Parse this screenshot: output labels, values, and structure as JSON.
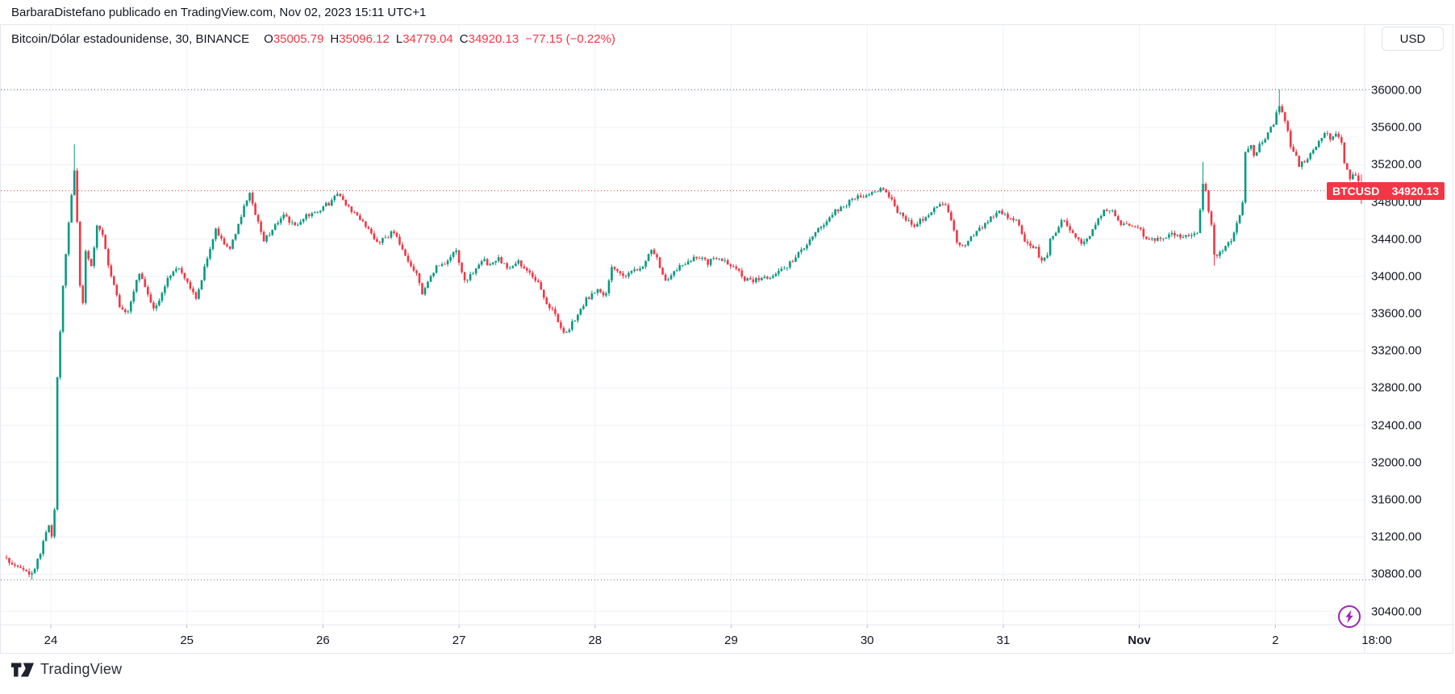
{
  "attribution": "BarbaraDistefano publicado en TradingView.com, Nov 02, 2023 15:11 UTC+1",
  "header": {
    "title": "Bitcoin/Dólar estadounidense, 30, BINANCE",
    "ohlc": [
      {
        "label": "O",
        "value": "35005.79"
      },
      {
        "label": "H",
        "value": "35096.12"
      },
      {
        "label": "L",
        "value": "34779.04"
      },
      {
        "label": "C",
        "value": "34920.13"
      }
    ],
    "change": "−77.15 (−0.22%)",
    "currency_button": "USD"
  },
  "footer": {
    "logo_text": "TradingView"
  },
  "colors": {
    "up": "#089981",
    "down": "#f23645",
    "grid": "#eef1f6",
    "border": "#e4e7ee",
    "axis_text": "#131722",
    "hl_dotted": "#6a6d78",
    "last_price": "#f23645",
    "flash_purple": "#9c27b0",
    "tick_mark": "#b2b5be"
  },
  "chart_data": {
    "type": "candlestick",
    "symbol": "BTCUSD",
    "exchange": "BINANCE",
    "interval_minutes": 30,
    "title": "Bitcoin/Dólar estadounidense, 30, BINANCE",
    "last_price": 34920.13,
    "last_label": {
      "symbol": "BTCUSD",
      "price": "34920.13"
    },
    "open": 35005.79,
    "high": 35096.12,
    "low": 34779.04,
    "close": 34920.13,
    "change_abs": -77.15,
    "change_pct": -0.22,
    "session_high_line": 36008,
    "session_low_line": 30740,
    "y_axis": {
      "min": 30400,
      "max": 36000,
      "step": 400,
      "ticks": [
        "36000.00",
        "35600.00",
        "35200.00",
        "34800.00",
        "34400.00",
        "34000.00",
        "33600.00",
        "33200.00",
        "32800.00",
        "32400.00",
        "32000.00",
        "31600.00",
        "31200.00",
        "30800.00",
        "30400.00"
      ]
    },
    "x_axis": {
      "labels": [
        {
          "text": "24",
          "bold": false
        },
        {
          "text": "25",
          "bold": false
        },
        {
          "text": "26",
          "bold": false
        },
        {
          "text": "27",
          "bold": false
        },
        {
          "text": "28",
          "bold": false
        },
        {
          "text": "29",
          "bold": false
        },
        {
          "text": "30",
          "bold": false
        },
        {
          "text": "31",
          "bold": false
        },
        {
          "text": "Nov",
          "bold": true
        },
        {
          "text": "2",
          "bold": false
        },
        {
          "text": "18:00",
          "bold": false
        }
      ]
    },
    "candle_count": 480,
    "first_open": 30980,
    "noise": 26,
    "wick": 30,
    "noise_seed": 7,
    "close_keypoints": [
      [
        0,
        30960
      ],
      [
        4,
        30880
      ],
      [
        9,
        30800
      ],
      [
        12,
        31020
      ],
      [
        14,
        31250
      ],
      [
        15,
        31350
      ],
      [
        16,
        31220
      ],
      [
        17,
        31500
      ],
      [
        18,
        32900
      ],
      [
        19,
        33400
      ],
      [
        20,
        33900
      ],
      [
        21,
        34250
      ],
      [
        22,
        34600
      ],
      [
        23,
        34850
      ],
      [
        24,
        35150
      ],
      [
        25,
        34600
      ],
      [
        26,
        33900
      ],
      [
        27,
        33700
      ],
      [
        28,
        34250
      ],
      [
        30,
        34100
      ],
      [
        32,
        34550
      ],
      [
        34,
        34450
      ],
      [
        36,
        34100
      ],
      [
        38,
        33900
      ],
      [
        40,
        33650
      ],
      [
        43,
        33600
      ],
      [
        45,
        33850
      ],
      [
        47,
        34050
      ],
      [
        50,
        33800
      ],
      [
        52,
        33650
      ],
      [
        55,
        33800
      ],
      [
        57,
        34000
      ],
      [
        60,
        34100
      ],
      [
        64,
        33950
      ],
      [
        67,
        33750
      ],
      [
        70,
        34100
      ],
      [
        74,
        34500
      ],
      [
        77,
        34350
      ],
      [
        79,
        34300
      ],
      [
        83,
        34650
      ],
      [
        86,
        34900
      ],
      [
        88,
        34650
      ],
      [
        91,
        34400
      ],
      [
        94,
        34500
      ],
      [
        98,
        34650
      ],
      [
        102,
        34550
      ],
      [
        106,
        34650
      ],
      [
        110,
        34700
      ],
      [
        112,
        34750
      ],
      [
        115,
        34800
      ],
      [
        117,
        34880
      ],
      [
        120,
        34760
      ],
      [
        125,
        34620
      ],
      [
        128,
        34500
      ],
      [
        131,
        34350
      ],
      [
        134,
        34420
      ],
      [
        137,
        34480
      ],
      [
        140,
        34300
      ],
      [
        142,
        34150
      ],
      [
        145,
        34050
      ],
      [
        147,
        33820
      ],
      [
        150,
        34000
      ],
      [
        152,
        34120
      ],
      [
        155,
        34150
      ],
      [
        157,
        34220
      ],
      [
        159,
        34260
      ],
      [
        162,
        33950
      ],
      [
        165,
        34050
      ],
      [
        168,
        34180
      ],
      [
        171,
        34120
      ],
      [
        174,
        34200
      ],
      [
        177,
        34100
      ],
      [
        181,
        34150
      ],
      [
        184,
        34050
      ],
      [
        188,
        33950
      ],
      [
        191,
        33700
      ],
      [
        194,
        33600
      ],
      [
        196,
        33450
      ],
      [
        198,
        33380
      ],
      [
        201,
        33550
      ],
      [
        203,
        33650
      ],
      [
        205,
        33750
      ],
      [
        209,
        33850
      ],
      [
        212,
        33800
      ],
      [
        214,
        34100
      ],
      [
        217,
        34050
      ],
      [
        219,
        34000
      ],
      [
        222,
        34050
      ],
      [
        225,
        34100
      ],
      [
        228,
        34300
      ],
      [
        230,
        34200
      ],
      [
        233,
        33950
      ],
      [
        236,
        34050
      ],
      [
        239,
        34120
      ],
      [
        242,
        34180
      ],
      [
        245,
        34200
      ],
      [
        248,
        34150
      ],
      [
        250,
        34200
      ],
      [
        254,
        34150
      ],
      [
        258,
        34100
      ],
      [
        261,
        33980
      ],
      [
        264,
        33950
      ],
      [
        267,
        34000
      ],
      [
        270,
        33980
      ],
      [
        273,
        34050
      ],
      [
        276,
        34120
      ],
      [
        279,
        34200
      ],
      [
        281,
        34280
      ],
      [
        284,
        34380
      ],
      [
        287,
        34500
      ],
      [
        290,
        34600
      ],
      [
        293,
        34700
      ],
      [
        296,
        34750
      ],
      [
        298,
        34800
      ],
      [
        301,
        34850
      ],
      [
        305,
        34880
      ],
      [
        309,
        34940
      ],
      [
        311,
        34900
      ],
      [
        313,
        34820
      ],
      [
        315,
        34700
      ],
      [
        317,
        34650
      ],
      [
        319,
        34600
      ],
      [
        321,
        34550
      ],
      [
        323,
        34600
      ],
      [
        325,
        34650
      ],
      [
        327,
        34700
      ],
      [
        330,
        34800
      ],
      [
        332,
        34750
      ],
      [
        334,
        34600
      ],
      [
        336,
        34350
      ],
      [
        338,
        34320
      ],
      [
        340,
        34380
      ],
      [
        343,
        34500
      ],
      [
        346,
        34550
      ],
      [
        348,
        34620
      ],
      [
        351,
        34680
      ],
      [
        354,
        34650
      ],
      [
        357,
        34600
      ],
      [
        359,
        34450
      ],
      [
        361,
        34330
      ],
      [
        364,
        34300
      ],
      [
        366,
        34150
      ],
      [
        368,
        34250
      ],
      [
        369,
        34400
      ],
      [
        371,
        34450
      ],
      [
        373,
        34600
      ],
      [
        375,
        34550
      ],
      [
        378,
        34400
      ],
      [
        381,
        34350
      ],
      [
        384,
        34500
      ],
      [
        386,
        34600
      ],
      [
        388,
        34700
      ],
      [
        391,
        34720
      ],
      [
        393,
        34600
      ],
      [
        395,
        34550
      ],
      [
        399,
        34550
      ],
      [
        401,
        34500
      ],
      [
        403,
        34400
      ],
      [
        406,
        34380
      ],
      [
        409,
        34420
      ],
      [
        412,
        34450
      ],
      [
        415,
        34420
      ],
      [
        418,
        34450
      ],
      [
        421,
        34440
      ],
      [
        423,
        35000
      ],
      [
        424,
        34900
      ],
      [
        425,
        34700
      ],
      [
        426,
        34550
      ],
      [
        427,
        34250
      ],
      [
        428,
        34200
      ],
      [
        430,
        34300
      ],
      [
        432,
        34350
      ],
      [
        434,
        34450
      ],
      [
        435,
        34550
      ],
      [
        437,
        34800
      ],
      [
        438,
        35350
      ],
      [
        440,
        35400
      ],
      [
        441,
        35300
      ],
      [
        442,
        35350
      ],
      [
        443,
        35400
      ],
      [
        444,
        35450
      ],
      [
        446,
        35550
      ],
      [
        448,
        35650
      ],
      [
        450,
        35845
      ],
      [
        451,
        35750
      ],
      [
        452,
        35650
      ],
      [
        453,
        35550
      ],
      [
        454,
        35400
      ],
      [
        456,
        35300
      ],
      [
        457,
        35200
      ],
      [
        459,
        35250
      ],
      [
        461,
        35300
      ],
      [
        463,
        35400
      ],
      [
        465,
        35500
      ],
      [
        467,
        35550
      ],
      [
        468,
        35480
      ],
      [
        470,
        35520
      ],
      [
        472,
        35450
      ],
      [
        473,
        35200
      ],
      [
        475,
        35050
      ],
      [
        477,
        35100
      ],
      [
        479,
        34920.13
      ]
    ],
    "overrides": [
      {
        "i": 9,
        "low": 30740
      },
      {
        "i": 24,
        "high": 35420
      },
      {
        "i": 423,
        "high": 35230
      },
      {
        "i": 427,
        "low": 34115
      },
      {
        "i": 450,
        "high": 36008
      },
      {
        "i": 479,
        "open": 35005.79,
        "high": 35096.12,
        "low": 34779.04,
        "close": 34920.13
      }
    ]
  }
}
